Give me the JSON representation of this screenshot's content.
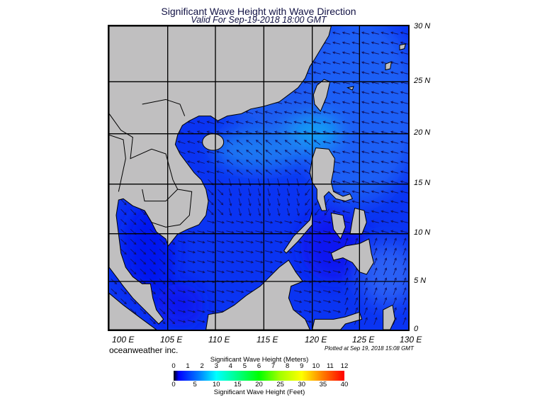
{
  "header": {
    "title": "Significant Wave Height with Wave Direction",
    "subtitle": "Valid For Sep-19-2018 18:00 GMT"
  },
  "map": {
    "lat_labels": [
      "30 N",
      "25 N",
      "20 N",
      "15 N",
      "10 N",
      "5 N",
      "0"
    ],
    "lon_labels": [
      "100 E",
      "105 E",
      "110 E",
      "115 E",
      "120 E",
      "125 E",
      "130 E"
    ],
    "colors": {
      "land": "#c0bfc0",
      "sea_deep": "#0020f0",
      "sea_mid": "#1a4cf5",
      "sea_light": "#1890f0",
      "arrow": "#101060",
      "border": "#000000"
    }
  },
  "footer": {
    "brand": "oceanweather inc.",
    "plotted": "Plotted at Sep 19, 2018 15:08 GMT"
  },
  "colorbar": {
    "title_meters": "Significant Wave Height (Meters)",
    "title_feet": "Significant Wave Height (Feet)",
    "meters_ticks": [
      "0",
      "1",
      "2",
      "3",
      "4",
      "5",
      "6",
      "7",
      "8",
      "9",
      "10",
      "11",
      "12"
    ],
    "feet_ticks": [
      "0",
      "5",
      "10",
      "15",
      "20",
      "25",
      "30",
      "35",
      "40"
    ],
    "range_meters": [
      0,
      12
    ],
    "colors": [
      "#000000",
      "#0000ff",
      "#00ffff",
      "#00ff00",
      "#ffff00",
      "#ff0000"
    ]
  }
}
